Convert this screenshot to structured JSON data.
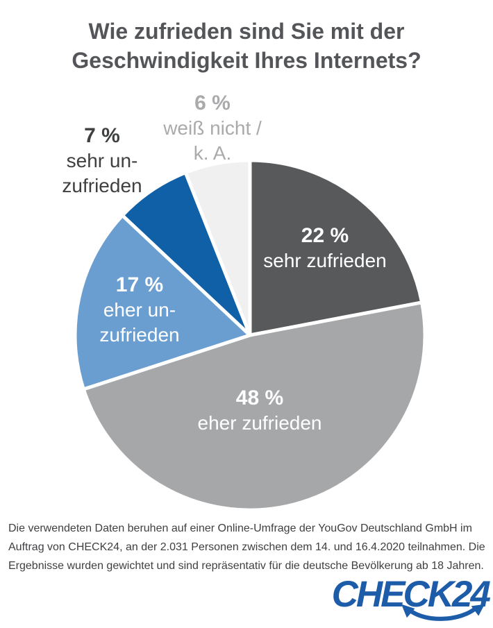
{
  "header": {
    "title": "Wie zufrieden sind Sie mit der\nGeschwindigkeit Ihres Internets?"
  },
  "chart_data": {
    "type": "pie",
    "title": "Wie zufrieden sind Sie mit der Geschwindigkeit Ihres Internets?",
    "start_angle_deg": -90,
    "direction": "clockwise",
    "gap_color": "#ffffff",
    "slices": [
      {
        "label": "sehr zufrieden",
        "value": 22,
        "value_label": "22 %",
        "color": "#58595b",
        "label_color": "#ffffff",
        "label_inside": true
      },
      {
        "label": "eher zufrieden",
        "value": 48,
        "value_label": "48 %",
        "color": "#a6a7a9",
        "label_color": "#ffffff",
        "label_inside": true
      },
      {
        "label": "eher un-\nzufrieden",
        "value": 17,
        "value_label": "17 %",
        "color": "#6b9ed0",
        "label_color": "#ffffff",
        "label_inside": true
      },
      {
        "label": "sehr un-\nzufrieden",
        "value": 7,
        "value_label": "7 %",
        "color": "#1060a8",
        "label_color": "#3f4041",
        "label_inside": false
      },
      {
        "label": "weiß nicht /\nk. A.",
        "value": 6,
        "value_label": "6 %",
        "color": "#f0f0f1",
        "label_color": "#a9aaac",
        "label_inside": false
      }
    ]
  },
  "footer": {
    "disclaimer": "Die verwendeten Daten beruhen auf einer Online-Umfrage der YouGov Deutschland GmbH im Auftrag von CHECK24, an der 2.031 Personen zwischen dem 14. und 16.4.2020 teilnahmen. Die Ergebnisse wurden gewichtet und sind repräsentativ für die deutsche Bevölkerung ab 18 Jahren."
  },
  "logo": {
    "text": "CHECK24",
    "color": "#1d5ca8"
  }
}
